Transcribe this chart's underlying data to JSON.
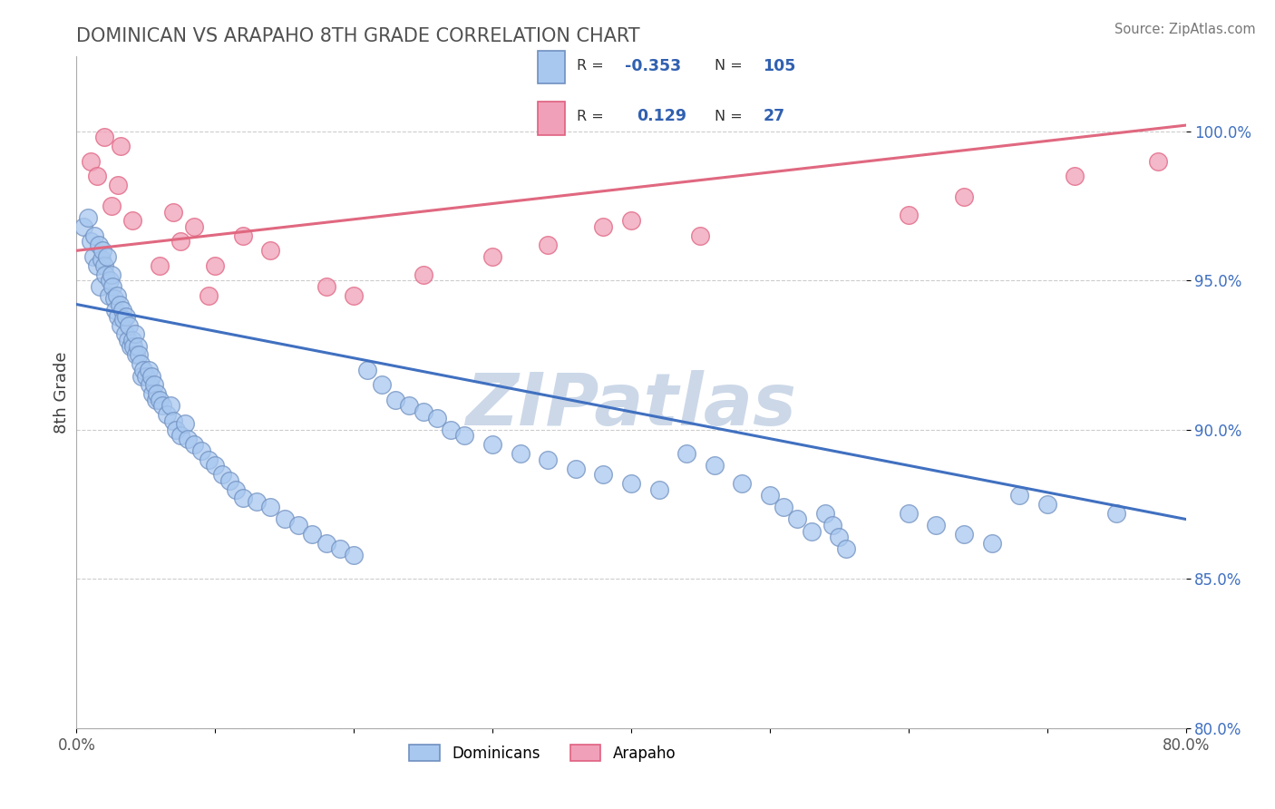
{
  "title": "DOMINICAN VS ARAPAHO 8TH GRADE CORRELATION CHART",
  "source": "Source: ZipAtlas.com",
  "ylabel": "8th Grade",
  "xlim": [
    0.0,
    0.8
  ],
  "ylim": [
    0.8,
    1.025
  ],
  "yticks": [
    0.8,
    0.85,
    0.9,
    0.95,
    1.0
  ],
  "ytick_labels": [
    "80.0%",
    "85.0%",
    "90.0%",
    "95.0%",
    "100.0%"
  ],
  "xticks": [
    0.0,
    0.1,
    0.2,
    0.3,
    0.4,
    0.5,
    0.6,
    0.7,
    0.8
  ],
  "xtick_labels": [
    "0.0%",
    "",
    "",
    "",
    "",
    "",
    "",
    "",
    "80.0%"
  ],
  "blue_color": "#A8C8F0",
  "pink_color": "#F0A0B8",
  "blue_edge_color": "#7090C0",
  "pink_edge_color": "#E06080",
  "blue_line_color": "#4070C0",
  "pink_line_color": "#E06880",
  "legend_r_color": "#3060B0",
  "background_color": "#ffffff",
  "grid_color": "#cccccc",
  "title_color": "#505050",
  "watermark": "ZIPatlas",
  "watermark_color": "#ccd8e8",
  "blue_trend_x0": 0.0,
  "blue_trend_y0": 0.942,
  "blue_trend_x1": 0.8,
  "blue_trend_y1": 0.87,
  "pink_trend_x0": 0.0,
  "pink_trend_y0": 0.96,
  "pink_trend_x1": 0.8,
  "pink_trend_y1": 1.002,
  "blue_x": [
    0.005,
    0.008,
    0.01,
    0.012,
    0.013,
    0.015,
    0.016,
    0.017,
    0.018,
    0.019,
    0.02,
    0.021,
    0.022,
    0.023,
    0.024,
    0.025,
    0.026,
    0.027,
    0.028,
    0.029,
    0.03,
    0.031,
    0.032,
    0.033,
    0.034,
    0.035,
    0.036,
    0.037,
    0.038,
    0.039,
    0.04,
    0.041,
    0.042,
    0.043,
    0.044,
    0.045,
    0.046,
    0.047,
    0.048,
    0.05,
    0.052,
    0.053,
    0.054,
    0.055,
    0.056,
    0.057,
    0.058,
    0.06,
    0.062,
    0.065,
    0.068,
    0.07,
    0.072,
    0.075,
    0.078,
    0.08,
    0.085,
    0.09,
    0.095,
    0.1,
    0.105,
    0.11,
    0.115,
    0.12,
    0.13,
    0.14,
    0.15,
    0.16,
    0.17,
    0.18,
    0.19,
    0.2,
    0.21,
    0.22,
    0.23,
    0.24,
    0.25,
    0.26,
    0.27,
    0.28,
    0.3,
    0.32,
    0.34,
    0.36,
    0.38,
    0.4,
    0.42,
    0.44,
    0.46,
    0.48,
    0.5,
    0.51,
    0.52,
    0.53,
    0.54,
    0.545,
    0.55,
    0.555,
    0.6,
    0.62,
    0.64,
    0.66,
    0.68,
    0.7,
    0.75
  ],
  "blue_y": [
    0.968,
    0.971,
    0.963,
    0.958,
    0.965,
    0.955,
    0.962,
    0.948,
    0.957,
    0.96,
    0.955,
    0.952,
    0.958,
    0.945,
    0.95,
    0.952,
    0.948,
    0.944,
    0.94,
    0.945,
    0.938,
    0.942,
    0.935,
    0.94,
    0.937,
    0.932,
    0.938,
    0.93,
    0.935,
    0.928,
    0.93,
    0.928,
    0.932,
    0.925,
    0.928,
    0.925,
    0.922,
    0.918,
    0.92,
    0.918,
    0.92,
    0.915,
    0.918,
    0.912,
    0.915,
    0.91,
    0.912,
    0.91,
    0.908,
    0.905,
    0.908,
    0.903,
    0.9,
    0.898,
    0.902,
    0.897,
    0.895,
    0.893,
    0.89,
    0.888,
    0.885,
    0.883,
    0.88,
    0.877,
    0.876,
    0.874,
    0.87,
    0.868,
    0.865,
    0.862,
    0.86,
    0.858,
    0.92,
    0.915,
    0.91,
    0.908,
    0.906,
    0.904,
    0.9,
    0.898,
    0.895,
    0.892,
    0.89,
    0.887,
    0.885,
    0.882,
    0.88,
    0.892,
    0.888,
    0.882,
    0.878,
    0.874,
    0.87,
    0.866,
    0.872,
    0.868,
    0.864,
    0.86,
    0.872,
    0.868,
    0.865,
    0.862,
    0.878,
    0.875,
    0.872
  ],
  "pink_x": [
    0.01,
    0.015,
    0.02,
    0.025,
    0.03,
    0.032,
    0.04,
    0.06,
    0.07,
    0.075,
    0.085,
    0.095,
    0.1,
    0.12,
    0.14,
    0.18,
    0.2,
    0.25,
    0.3,
    0.34,
    0.38,
    0.4,
    0.45,
    0.6,
    0.64,
    0.72,
    0.78
  ],
  "pink_y": [
    0.99,
    0.985,
    0.998,
    0.975,
    0.982,
    0.995,
    0.97,
    0.955,
    0.973,
    0.963,
    0.968,
    0.945,
    0.955,
    0.965,
    0.96,
    0.948,
    0.945,
    0.952,
    0.958,
    0.962,
    0.968,
    0.97,
    0.965,
    0.972,
    0.978,
    0.985,
    0.99
  ]
}
